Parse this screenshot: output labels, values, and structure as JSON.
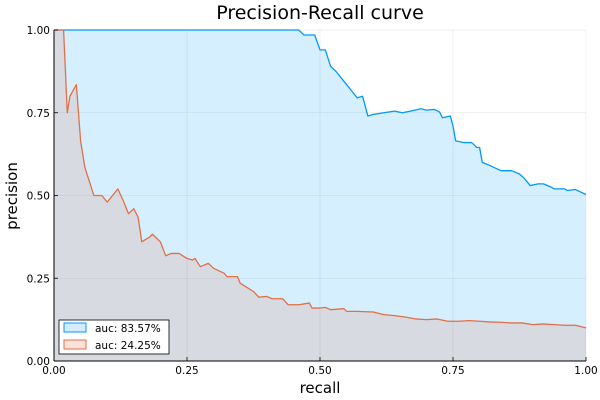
{
  "chart_data": {
    "type": "area",
    "title": "Precision-Recall curve",
    "xlabel": "recall",
    "ylabel": "precision",
    "xlim": [
      0,
      1
    ],
    "ylim": [
      0,
      1
    ],
    "xticks": [
      "0.00",
      "0.25",
      "0.50",
      "0.75",
      "1.00"
    ],
    "yticks": [
      "0.00",
      "0.25",
      "0.50",
      "0.75",
      "1.00"
    ],
    "grid": true,
    "legend": "bottom-left",
    "series": [
      {
        "name": "auc: 83.57%",
        "line_color": "#009AFA",
        "fill_color": "#D4ECFB",
        "points": [
          [
            0,
            1.0
          ],
          [
            0.46,
            1.0
          ],
          [
            0.47,
            0.985
          ],
          [
            0.49,
            0.985
          ],
          [
            0.5,
            0.94
          ],
          [
            0.51,
            0.94
          ],
          [
            0.52,
            0.89
          ],
          [
            0.53,
            0.875
          ],
          [
            0.545,
            0.845
          ],
          [
            0.56,
            0.815
          ],
          [
            0.57,
            0.795
          ],
          [
            0.58,
            0.8
          ],
          [
            0.59,
            0.74
          ],
          [
            0.6,
            0.745
          ],
          [
            0.62,
            0.75
          ],
          [
            0.64,
            0.755
          ],
          [
            0.655,
            0.75
          ],
          [
            0.67,
            0.755
          ],
          [
            0.69,
            0.762
          ],
          [
            0.7,
            0.758
          ],
          [
            0.715,
            0.76
          ],
          [
            0.725,
            0.752
          ],
          [
            0.73,
            0.735
          ],
          [
            0.745,
            0.74
          ],
          [
            0.75,
            0.71
          ],
          [
            0.755,
            0.665
          ],
          [
            0.77,
            0.66
          ],
          [
            0.785,
            0.66
          ],
          [
            0.795,
            0.645
          ],
          [
            0.8,
            0.645
          ],
          [
            0.805,
            0.6
          ],
          [
            0.82,
            0.59
          ],
          [
            0.84,
            0.575
          ],
          [
            0.86,
            0.575
          ],
          [
            0.875,
            0.565
          ],
          [
            0.885,
            0.55
          ],
          [
            0.895,
            0.53
          ],
          [
            0.91,
            0.535
          ],
          [
            0.92,
            0.535
          ],
          [
            0.935,
            0.525
          ],
          [
            0.94,
            0.52
          ],
          [
            0.96,
            0.52
          ],
          [
            0.965,
            0.515
          ],
          [
            0.98,
            0.518
          ],
          [
            1.0,
            0.503
          ]
        ]
      },
      {
        "name": "auc: 24.25%",
        "line_color": "#E26F46",
        "fill_color": "#F9E2D9",
        "points": [
          [
            0,
            1.0
          ],
          [
            0.018,
            1.0
          ],
          [
            0.025,
            0.75
          ],
          [
            0.03,
            0.8
          ],
          [
            0.042,
            0.835
          ],
          [
            0.05,
            0.665
          ],
          [
            0.058,
            0.585
          ],
          [
            0.068,
            0.535
          ],
          [
            0.075,
            0.5
          ],
          [
            0.09,
            0.5
          ],
          [
            0.1,
            0.48
          ],
          [
            0.11,
            0.5
          ],
          [
            0.12,
            0.52
          ],
          [
            0.13,
            0.485
          ],
          [
            0.14,
            0.445
          ],
          [
            0.15,
            0.46
          ],
          [
            0.158,
            0.435
          ],
          [
            0.165,
            0.36
          ],
          [
            0.18,
            0.375
          ],
          [
            0.185,
            0.383
          ],
          [
            0.2,
            0.36
          ],
          [
            0.21,
            0.318
          ],
          [
            0.22,
            0.325
          ],
          [
            0.235,
            0.325
          ],
          [
            0.25,
            0.31
          ],
          [
            0.26,
            0.305
          ],
          [
            0.265,
            0.31
          ],
          [
            0.275,
            0.285
          ],
          [
            0.29,
            0.295
          ],
          [
            0.3,
            0.28
          ],
          [
            0.32,
            0.265
          ],
          [
            0.325,
            0.255
          ],
          [
            0.345,
            0.255
          ],
          [
            0.35,
            0.235
          ],
          [
            0.36,
            0.225
          ],
          [
            0.375,
            0.21
          ],
          [
            0.385,
            0.193
          ],
          [
            0.4,
            0.195
          ],
          [
            0.41,
            0.188
          ],
          [
            0.43,
            0.188
          ],
          [
            0.44,
            0.17
          ],
          [
            0.46,
            0.17
          ],
          [
            0.48,
            0.175
          ],
          [
            0.485,
            0.16
          ],
          [
            0.5,
            0.16
          ],
          [
            0.51,
            0.162
          ],
          [
            0.52,
            0.155
          ],
          [
            0.545,
            0.158
          ],
          [
            0.55,
            0.15
          ],
          [
            0.57,
            0.15
          ],
          [
            0.6,
            0.148
          ],
          [
            0.62,
            0.14
          ],
          [
            0.64,
            0.137
          ],
          [
            0.66,
            0.133
          ],
          [
            0.68,
            0.127
          ],
          [
            0.7,
            0.125
          ],
          [
            0.72,
            0.127
          ],
          [
            0.74,
            0.12
          ],
          [
            0.76,
            0.12
          ],
          [
            0.78,
            0.122
          ],
          [
            0.8,
            0.12
          ],
          [
            0.82,
            0.118
          ],
          [
            0.84,
            0.117
          ],
          [
            0.86,
            0.115
          ],
          [
            0.88,
            0.115
          ],
          [
            0.9,
            0.11
          ],
          [
            0.92,
            0.112
          ],
          [
            0.94,
            0.11
          ],
          [
            0.96,
            0.108
          ],
          [
            0.98,
            0.108
          ],
          [
            1.0,
            0.1
          ]
        ]
      }
    ]
  }
}
